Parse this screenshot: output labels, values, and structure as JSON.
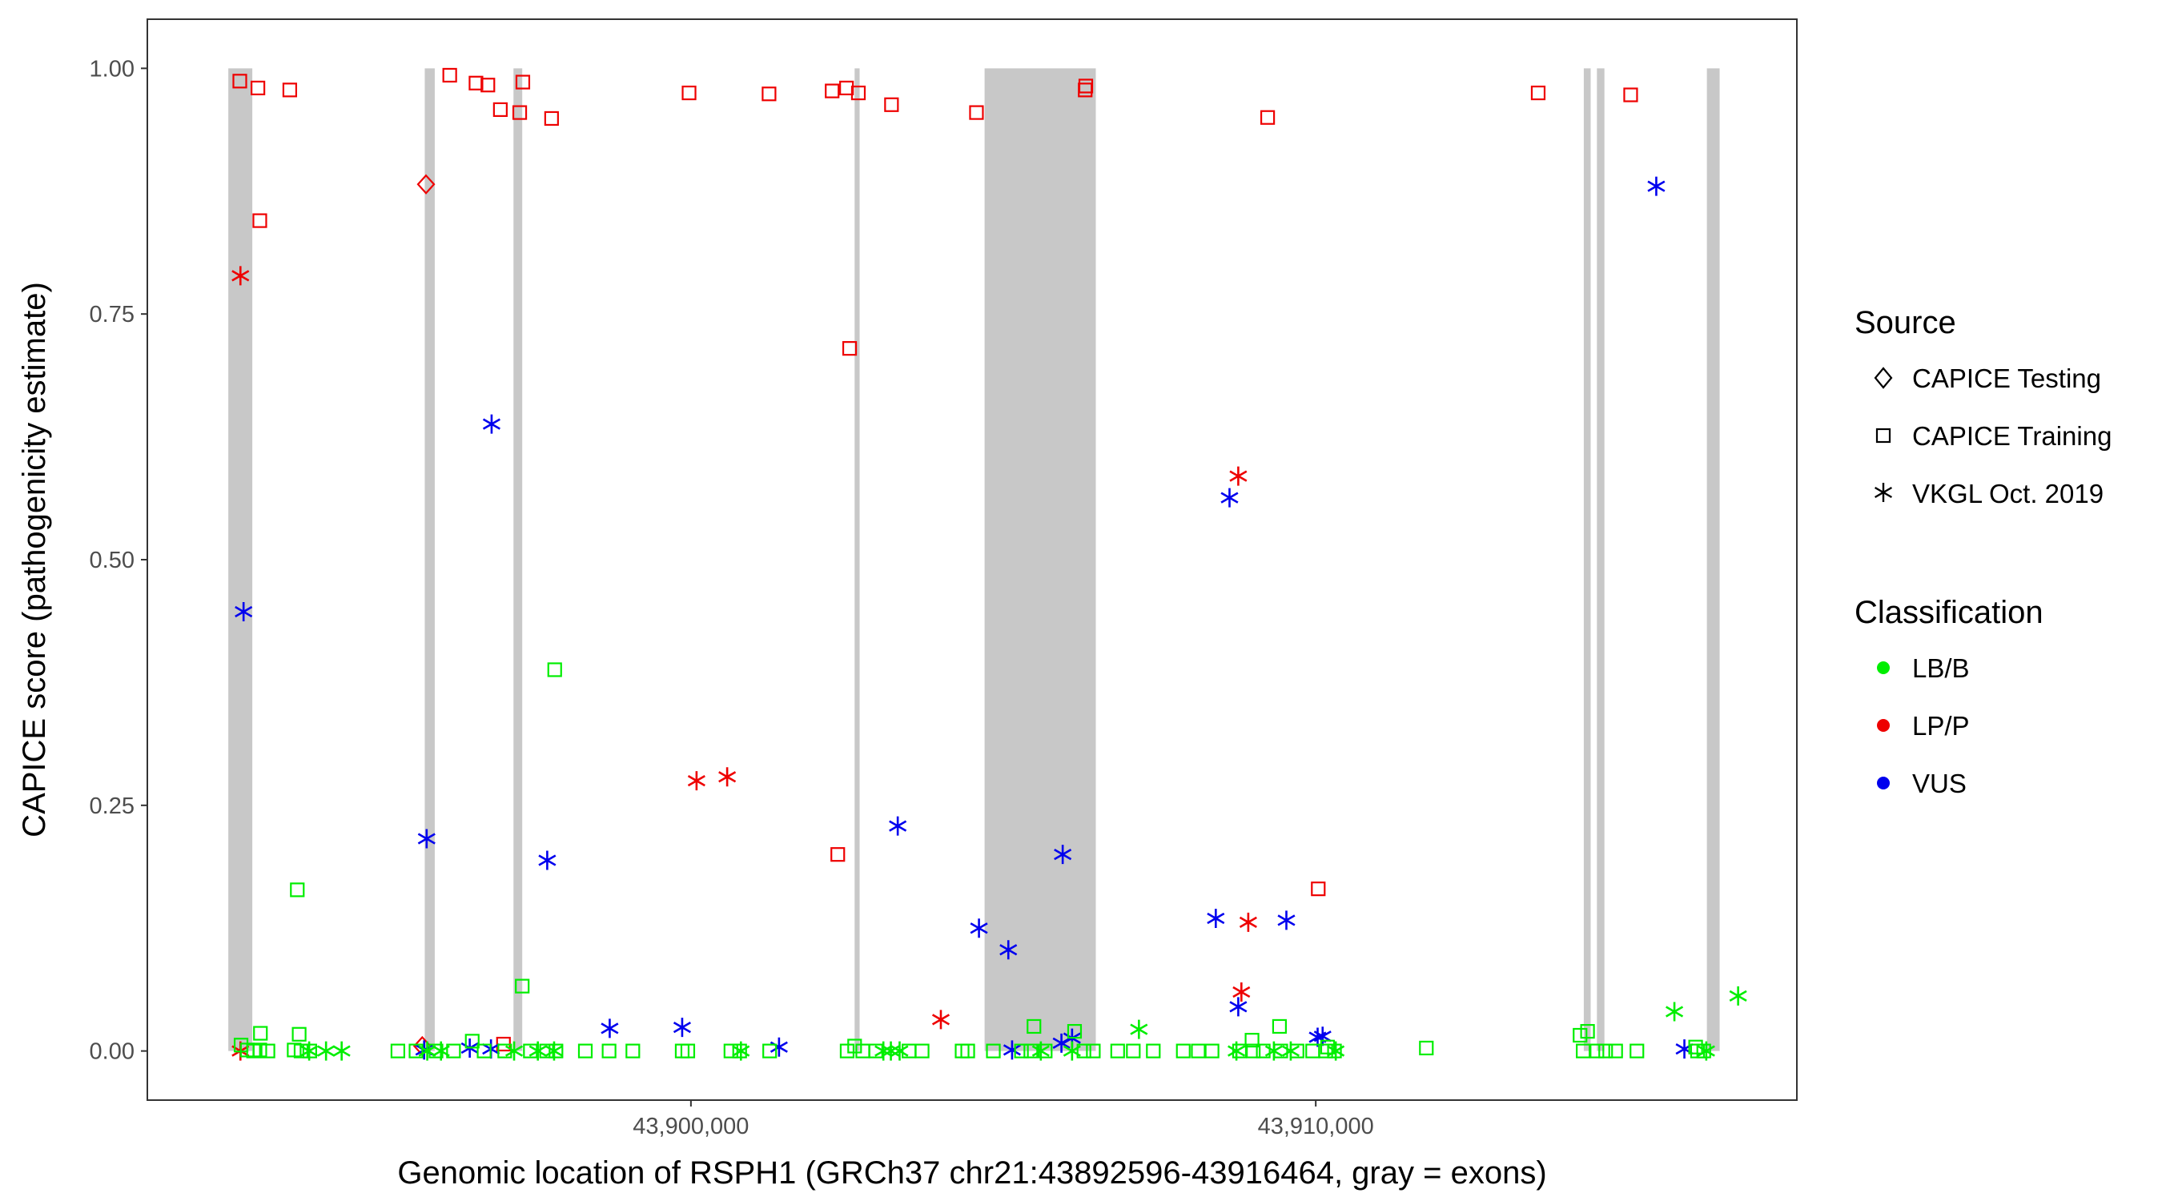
{
  "chart_data": {
    "type": "scatter",
    "title": "",
    "xlabel": "Genomic location of RSPH1 (GRCh37 chr21:43892596-43916464, gray = exons)",
    "ylabel": "CAPICE score (pathogenicity estimate)",
    "xlim": [
      43891300,
      43917700
    ],
    "ylim": [
      -0.05,
      1.05
    ],
    "x_ticks": [
      {
        "value": 43900000,
        "label": "43,900,000"
      },
      {
        "value": 43910000,
        "label": "43,910,000"
      }
    ],
    "y_ticks": [
      {
        "value": 0.0,
        "label": "0.00"
      },
      {
        "value": 0.25,
        "label": "0.25"
      },
      {
        "value": 0.5,
        "label": "0.50"
      },
      {
        "value": 0.75,
        "label": "0.75"
      },
      {
        "value": 1.0,
        "label": "1.00"
      }
    ],
    "grid": false,
    "exons": [
      [
        43892596,
        43892980
      ],
      [
        43895740,
        43895900
      ],
      [
        43897160,
        43897300
      ],
      [
        43902620,
        43902700
      ],
      [
        43904700,
        43906480
      ],
      [
        43914290,
        43914400
      ],
      [
        43914500,
        43914620
      ],
      [
        43916260,
        43916464
      ]
    ],
    "legend": {
      "placement": "right",
      "source": {
        "title": "Source",
        "entries": [
          {
            "label": "CAPICE Testing",
            "shape": "diamond"
          },
          {
            "label": "CAPICE Training",
            "shape": "square"
          },
          {
            "label": "VKGL Oct. 2019",
            "shape": "asterisk"
          }
        ]
      },
      "classification": {
        "title": "Classification",
        "entries": [
          {
            "label": "LB/B",
            "color": "#00ee00"
          },
          {
            "label": "LP/P",
            "color": "#ee0000"
          },
          {
            "label": "VUS",
            "color": "#0000ee"
          }
        ]
      }
    },
    "series": [
      {
        "classification": "LP/P",
        "source": "CAPICE Training",
        "shape": "square",
        "color": "#ee0000",
        "points": [
          [
            43892780,
            0.987
          ],
          [
            43893070,
            0.98
          ],
          [
            43893580,
            0.978
          ],
          [
            43896140,
            0.993
          ],
          [
            43896560,
            0.985
          ],
          [
            43896750,
            0.983
          ],
          [
            43896950,
            0.958
          ],
          [
            43897260,
            0.955
          ],
          [
            43897310,
            0.986
          ],
          [
            43897770,
            0.949
          ],
          [
            43899970,
            0.975
          ],
          [
            43901250,
            0.974
          ],
          [
            43902260,
            0.977
          ],
          [
            43902490,
            0.98
          ],
          [
            43902680,
            0.975
          ],
          [
            43903210,
            0.963
          ],
          [
            43904570,
            0.955
          ],
          [
            43906310,
            0.978
          ],
          [
            43906320,
            0.982
          ],
          [
            43909230,
            0.95
          ],
          [
            43913560,
            0.975
          ],
          [
            43915040,
            0.973
          ],
          [
            43893100,
            0.845
          ],
          [
            43902540,
            0.715
          ],
          [
            43902350,
            0.2
          ],
          [
            43910040,
            0.165
          ],
          [
            43897000,
            0.007
          ]
        ]
      },
      {
        "classification": "LP/P",
        "source": "CAPICE Testing",
        "shape": "diamond",
        "color": "#ee0000",
        "points": [
          [
            43895760,
            0.882
          ],
          [
            43895700,
            0.005
          ]
        ]
      },
      {
        "classification": "LP/P",
        "source": "VKGL Oct. 2019",
        "shape": "asterisk",
        "color": "#ee0000",
        "points": [
          [
            43892790,
            0.789
          ],
          [
            43900090,
            0.275
          ],
          [
            43900580,
            0.279
          ],
          [
            43904000,
            0.032
          ],
          [
            43908760,
            0.585
          ],
          [
            43908920,
            0.131
          ],
          [
            43908810,
            0.06
          ],
          [
            43892790,
            0.0
          ]
        ]
      },
      {
        "classification": "VUS",
        "source": "VKGL Oct. 2019",
        "shape": "asterisk",
        "color": "#0000ee",
        "points": [
          [
            43892840,
            0.447
          ],
          [
            43895770,
            0.216
          ],
          [
            43896810,
            0.638
          ],
          [
            43897700,
            0.194
          ],
          [
            43903310,
            0.229
          ],
          [
            43905950,
            0.2
          ],
          [
            43904610,
            0.125
          ],
          [
            43905080,
            0.103
          ],
          [
            43908400,
            0.135
          ],
          [
            43908620,
            0.563
          ],
          [
            43909530,
            0.133
          ],
          [
            43908760,
            0.045
          ],
          [
            43915450,
            0.88
          ],
          [
            43898700,
            0.023
          ],
          [
            43899860,
            0.024
          ],
          [
            43901410,
            0.004
          ],
          [
            43905930,
            0.008
          ],
          [
            43906100,
            0.013
          ],
          [
            43910110,
            0.015
          ],
          [
            43910030,
            0.014
          ],
          [
            43915900,
            0.002
          ],
          [
            43895730,
            0.001
          ],
          [
            43896460,
            0.003
          ],
          [
            43896800,
            0.002
          ],
          [
            43905140,
            0.001
          ]
        ]
      },
      {
        "classification": "LB/B",
        "source": "CAPICE Training",
        "shape": "square",
        "color": "#00ee00",
        "points": [
          [
            43893700,
            0.164
          ],
          [
            43897820,
            0.388
          ],
          [
            43897300,
            0.066
          ],
          [
            43905490,
            0.025
          ],
          [
            43906140,
            0.02
          ],
          [
            43908980,
            0.011
          ],
          [
            43909420,
            0.025
          ],
          [
            43914230,
            0.016
          ],
          [
            43914350,
            0.02
          ],
          [
            43892800,
            0.006
          ],
          [
            43893110,
            0.018
          ],
          [
            43893730,
            0.017
          ],
          [
            43896500,
            0.01
          ],
          [
            43902620,
            0.005
          ],
          [
            43911770,
            0.003
          ],
          [
            43910190,
            0.004
          ],
          [
            43916080,
            0.004
          ],
          [
            43892900,
            0.001
          ],
          [
            43893000,
            0.0
          ],
          [
            43893100,
            0.001
          ],
          [
            43893230,
            0.0
          ],
          [
            43893650,
            0.001
          ],
          [
            43893760,
            0.0
          ],
          [
            43893900,
            0.0
          ],
          [
            43895310,
            0.0
          ],
          [
            43895600,
            0.0
          ],
          [
            43895920,
            0.0
          ],
          [
            43896200,
            0.0
          ],
          [
            43896690,
            0.0
          ],
          [
            43897020,
            0.0
          ],
          [
            43897430,
            0.0
          ],
          [
            43897690,
            0.0
          ],
          [
            43897840,
            0.0
          ],
          [
            43898310,
            0.0
          ],
          [
            43898690,
            0.0
          ],
          [
            43899070,
            0.0
          ],
          [
            43899860,
            0.0
          ],
          [
            43899950,
            0.0
          ],
          [
            43900640,
            0.0
          ],
          [
            43900780,
            0.0
          ],
          [
            43901260,
            0.0
          ],
          [
            43902500,
            0.0
          ],
          [
            43902750,
            0.0
          ],
          [
            43902960,
            0.0
          ],
          [
            43903490,
            0.0
          ],
          [
            43903700,
            0.0
          ],
          [
            43904340,
            0.0
          ],
          [
            43904430,
            0.0
          ],
          [
            43904840,
            0.0
          ],
          [
            43905290,
            0.0
          ],
          [
            43905440,
            0.0
          ],
          [
            43905670,
            0.0
          ],
          [
            43906290,
            0.0
          ],
          [
            43906440,
            0.0
          ],
          [
            43906830,
            0.0
          ],
          [
            43907080,
            0.0
          ],
          [
            43907400,
            0.0
          ],
          [
            43907880,
            0.0
          ],
          [
            43908120,
            0.0
          ],
          [
            43908340,
            0.0
          ],
          [
            43908780,
            0.0
          ],
          [
            43909000,
            0.0
          ],
          [
            43909160,
            0.0
          ],
          [
            43909440,
            0.0
          ],
          [
            43909700,
            0.0
          ],
          [
            43909950,
            0.0
          ],
          [
            43910160,
            0.0
          ],
          [
            43910300,
            0.0
          ],
          [
            43914280,
            0.0
          ],
          [
            43914500,
            0.0
          ],
          [
            43914640,
            0.0
          ],
          [
            43914800,
            0.0
          ],
          [
            43915140,
            0.0
          ],
          [
            43916110,
            0.0
          ],
          [
            43916210,
            0.0
          ]
        ]
      },
      {
        "classification": "LB/B",
        "source": "VKGL Oct. 2019",
        "shape": "asterisk",
        "color": "#00ee00",
        "points": [
          [
            43907170,
            0.022
          ],
          [
            43915740,
            0.04
          ],
          [
            43916760,
            0.056
          ],
          [
            43893890,
            0.0
          ],
          [
            43894160,
            0.0
          ],
          [
            43894410,
            0.0
          ],
          [
            43895780,
            0.0
          ],
          [
            43896000,
            0.0
          ],
          [
            43897170,
            0.0
          ],
          [
            43897550,
            0.0
          ],
          [
            43897810,
            0.0
          ],
          [
            43900800,
            0.0
          ],
          [
            43903080,
            0.0
          ],
          [
            43903200,
            0.0
          ],
          [
            43903340,
            0.0
          ],
          [
            43905600,
            0.0
          ],
          [
            43906100,
            0.0
          ],
          [
            43908730,
            0.0
          ],
          [
            43909330,
            0.0
          ],
          [
            43909600,
            0.0
          ],
          [
            43910320,
            0.0
          ],
          [
            43916250,
            0.0
          ]
        ]
      }
    ]
  }
}
